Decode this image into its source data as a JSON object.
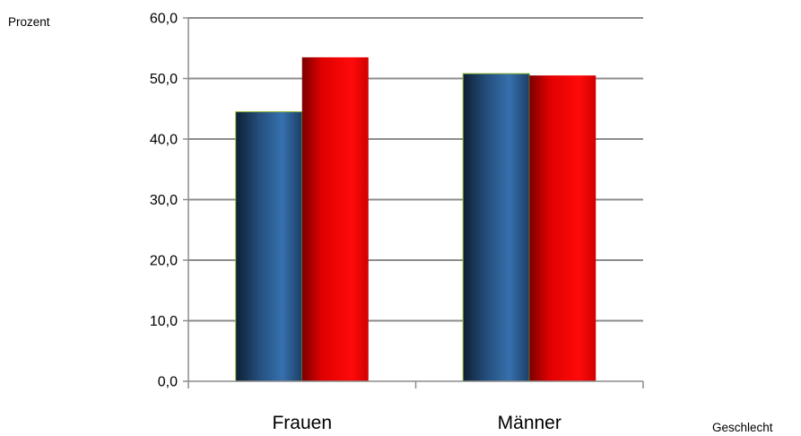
{
  "chart_data": {
    "type": "bar",
    "ylabel": "Prozent",
    "xlabel": "Geschlecht",
    "categories": [
      "Frauen",
      "Männer"
    ],
    "series": [
      {
        "values": [
          44.5,
          50.8
        ],
        "color": "#2a5e94"
      },
      {
        "values": [
          53.5,
          50.5
        ],
        "color": "#ff0000"
      }
    ],
    "ylim": [
      0,
      60
    ],
    "yticks": [
      "0,0",
      "10,0",
      "20,0",
      "30,0",
      "40,0",
      "50,0",
      "60,0"
    ],
    "grid": true,
    "legend": "none"
  }
}
